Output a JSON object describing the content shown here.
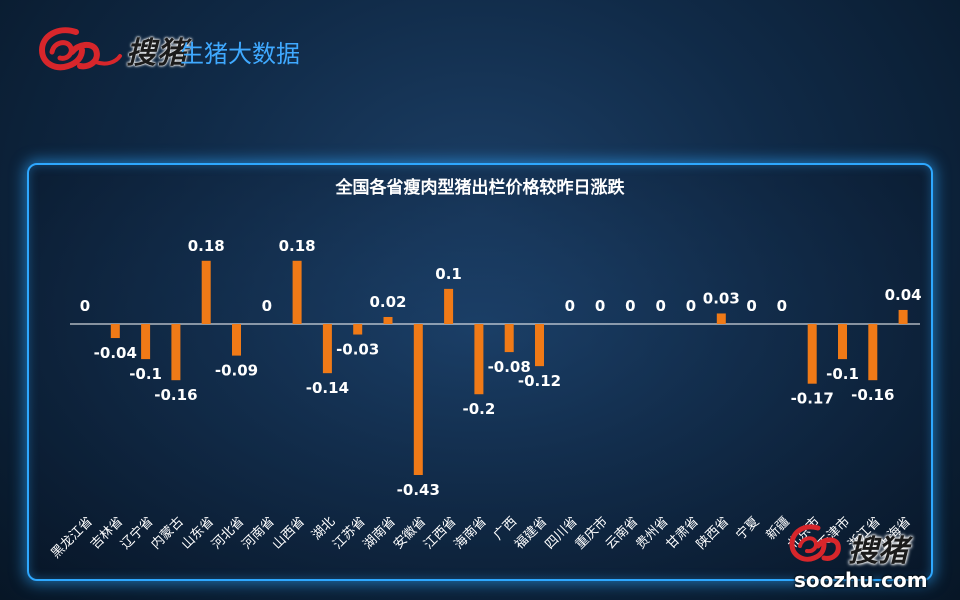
{
  "header": {
    "logo_text": "搜猪",
    "tagline": "生猪大数据"
  },
  "watermark": {
    "logo_text": "搜猪",
    "url": "soozhu.com"
  },
  "colors": {
    "bar": "#f07a17",
    "text": "#ffffff",
    "accent": "#3fa9ff",
    "logo_red": "#d7262b"
  },
  "chart_data": {
    "type": "bar",
    "title": "全国各省瘦肉型猪出栏价格较昨日涨跌",
    "xlabel": "",
    "ylabel": "",
    "grid": false,
    "legend": "none",
    "ylim": [
      -0.43,
      0.18
    ],
    "categories": [
      "黑龙江省",
      "吉林省",
      "辽宁省",
      "内蒙古",
      "山东省",
      "河北省",
      "河南省",
      "山西省",
      "湖北",
      "江苏省",
      "湖南省",
      "安徽省",
      "江西省",
      "海南省",
      "广西",
      "福建省",
      "四川省",
      "重庆市",
      "云南省",
      "贵州省",
      "甘肃省",
      "陕西省",
      "宁夏",
      "新疆",
      "北京市",
      "天津市",
      "浙江省",
      "上海省"
    ],
    "values": [
      0,
      -0.04,
      -0.1,
      -0.16,
      0.18,
      -0.09,
      0,
      0.18,
      -0.14,
      -0.03,
      0.02,
      -0.43,
      0.1,
      -0.2,
      -0.08,
      -0.12,
      0,
      0,
      0,
      0,
      0,
      0.03,
      0,
      0,
      -0.17,
      -0.1,
      -0.16,
      0.04
    ],
    "value_labels": [
      "0",
      "-0.04",
      "-0.1",
      "-0.16",
      "0.18",
      "-0.09",
      "0",
      "0.18",
      "-0.14",
      "-0.03",
      "0.02",
      "-0.43",
      "0.1",
      "-0.2",
      "-0.08",
      "-0.12",
      "0",
      "0",
      "0",
      "0",
      "0",
      "0.03",
      "0",
      "0",
      "-0.17",
      "-0.1",
      "-0.16",
      "0.04"
    ]
  }
}
